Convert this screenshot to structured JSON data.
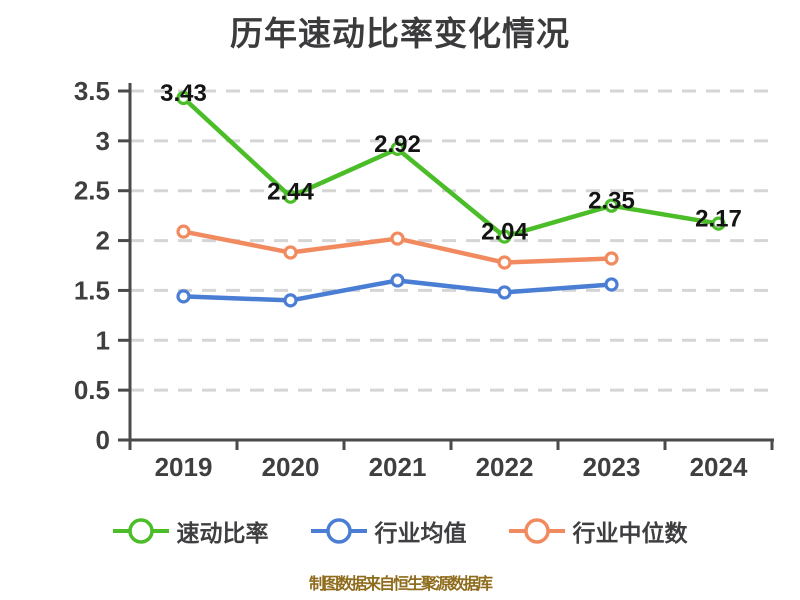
{
  "chart_data": {
    "type": "line",
    "title": "历年速动比率变化情况",
    "categories": [
      "2019",
      "2020",
      "2021",
      "2022",
      "2023",
      "2024"
    ],
    "series": [
      {
        "name": "速动比率",
        "color": "#4abd28",
        "values": [
          3.43,
          2.44,
          2.92,
          2.04,
          2.35,
          2.17
        ],
        "labels_shown": true
      },
      {
        "name": "行业均值",
        "color": "#4a7dd4",
        "values": [
          1.44,
          1.4,
          1.6,
          1.48,
          1.56,
          null
        ],
        "labels_shown": false
      },
      {
        "name": "行业中位数",
        "color": "#f18b5f",
        "values": [
          2.09,
          1.88,
          2.02,
          1.78,
          1.82,
          null
        ],
        "labels_shown": false
      }
    ],
    "ylim": [
      0,
      3.5
    ],
    "ytick_step": 0.5,
    "ytick_labels": [
      "0",
      "0.5",
      "1",
      "1.5",
      "2",
      "2.5",
      "3",
      "3.5"
    ],
    "grid": "horizontal-dashed",
    "legend_position": "bottom",
    "marker": "circle-white-fill"
  },
  "colors": {
    "title": "#3b3b3d",
    "axis": "#4a4a4a",
    "tick_label": "#3f3f42",
    "data_label": "#141414",
    "gridline": "#d5d5d5",
    "legend_text": "#3f3f42",
    "caption": "#8f6c1d",
    "background": "#ffffff"
  },
  "caption": {
    "text": "制图数据来自恒生聚源数据库"
  }
}
